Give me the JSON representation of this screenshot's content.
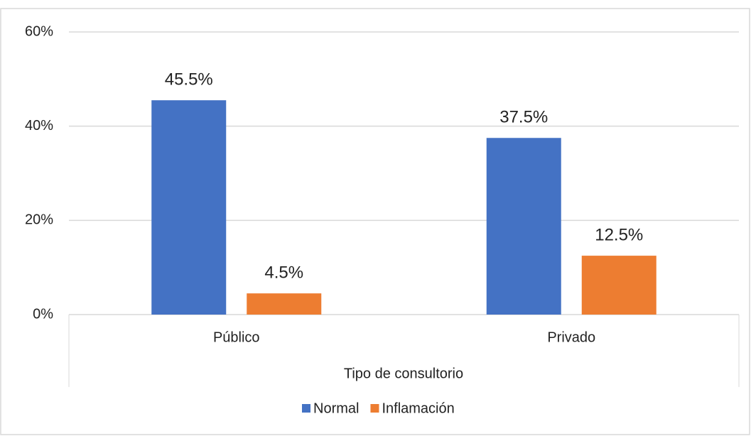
{
  "chart_data": {
    "type": "bar",
    "x_label": "Tipo de consultorio",
    "categories": [
      "Público",
      "Privado"
    ],
    "series": [
      {
        "name": "Normal",
        "color": "#4472c4",
        "values": [
          45.5,
          37.5
        ],
        "value_labels": [
          "45.5%",
          "37.5%"
        ]
      },
      {
        "name": "Inflamación",
        "color": "#ed7d31",
        "values": [
          4.5,
          12.5
        ],
        "value_labels": [
          "4.5%",
          "12.5%"
        ]
      }
    ],
    "ylim": [
      0,
      60
    ],
    "yticks": [
      {
        "value": 0,
        "label": "0%"
      },
      {
        "value": 20,
        "label": "20%"
      },
      {
        "value": 40,
        "label": "40%"
      },
      {
        "value": 60,
        "label": "60%"
      }
    ],
    "grid": true,
    "legend": "bottom"
  }
}
